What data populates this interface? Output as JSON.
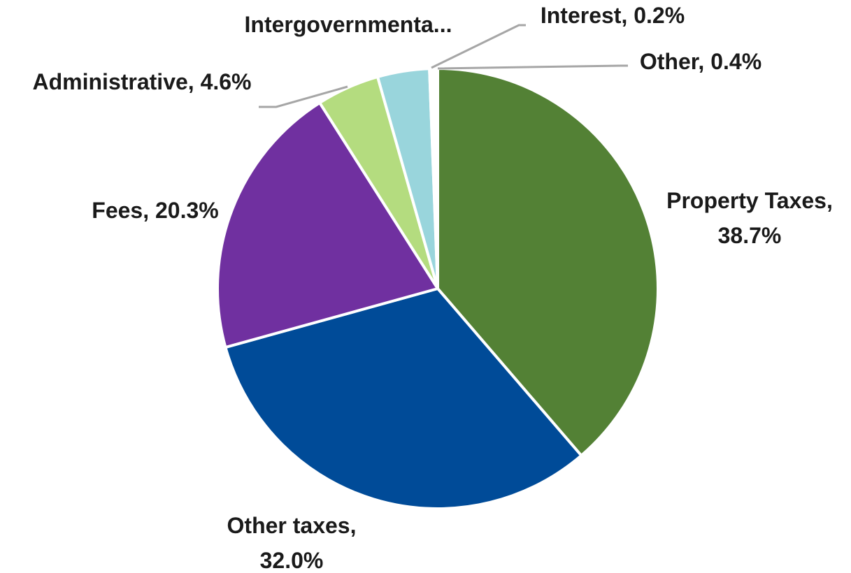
{
  "chart_data": {
    "type": "pie",
    "slices": [
      {
        "name": "Property Taxes",
        "value": 38.7,
        "label_lines": [
          "Property Taxes,",
          "38.7%"
        ],
        "color": "#538135"
      },
      {
        "name": "Other taxes",
        "value": 32.0,
        "label_lines": [
          "Other taxes,",
          "32.0%"
        ],
        "color": "#004b98"
      },
      {
        "name": "Fees",
        "value": 20.3,
        "label_lines": [
          "Fees, 20.3%"
        ],
        "color": "#7030a0"
      },
      {
        "name": "Administrative",
        "value": 4.6,
        "label_lines": [
          "Administrative, 4.6%"
        ],
        "color": "#b4dc7f"
      },
      {
        "name": "Intergovernmental",
        "value": 3.8,
        "label_lines": [
          "Intergovernmenta..."
        ],
        "color": "#99d5dc"
      },
      {
        "name": "Interest",
        "value": 0.2,
        "label_lines": [
          "Interest, 0.2%"
        ],
        "color": "#d9d9d9"
      },
      {
        "name": "Other",
        "value": 0.4,
        "label_lines": [
          "Other, 0.4%"
        ],
        "color": "#ffffff"
      }
    ],
    "start_angle_deg": 0,
    "direction": "clockwise",
    "legend": "none",
    "data_labels": "outside"
  }
}
